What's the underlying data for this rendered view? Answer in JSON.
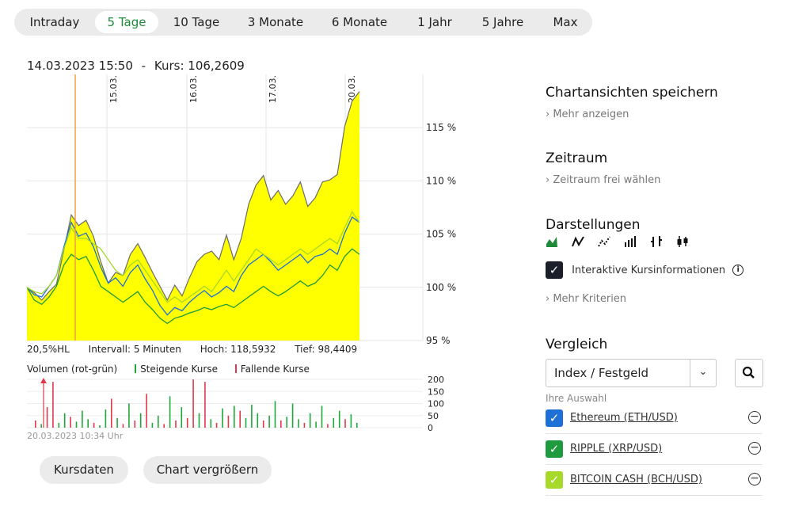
{
  "tabs": [
    {
      "label": "Intraday",
      "active": false
    },
    {
      "label": "5 Tage",
      "active": true
    },
    {
      "label": "10 Tage",
      "active": false
    },
    {
      "label": "3 Monate",
      "active": false
    },
    {
      "label": "6 Monate",
      "active": false
    },
    {
      "label": "1 Jahr",
      "active": false
    },
    {
      "label": "5 Jahre",
      "active": false
    },
    {
      "label": "Max",
      "active": false
    }
  ],
  "header": {
    "datetime": "14.03.2023 15:50",
    "separator": "-",
    "kurs": "Kurs: 106,2609"
  },
  "stats": {
    "hl": "20,5%HL",
    "intervall": "Intervall: 5 Minuten",
    "hoch": "Hoch: 118,5932",
    "tief": "Tief: 98,4409"
  },
  "volume_legend": {
    "title": "Volumen (rot-grün)",
    "rising": "Steigende Kurse",
    "falling": "Fallende Kurse"
  },
  "timestamp": "20.03.2023 10:34 Uhr",
  "buttons": {
    "kursdaten": "Kursdaten",
    "vergroessern": "Chart vergrößern"
  },
  "sidebar": {
    "save_title": "Chartansichten speichern",
    "save_link": "Mehr anzeigen",
    "zeitraum_title": "Zeitraum",
    "zeitraum_link": "Zeitraum frei wählen",
    "darstellungen_title": "Darstellungen",
    "darstellungen_icons": [
      "area-chart-icon",
      "line-chart-icon",
      "dotted-line-icon",
      "ohlc-bars-icon",
      "hlc-bars-icon",
      "candlestick-icon"
    ],
    "interactive_label": "Interaktive Kursinformationen",
    "mehr_kriterien": "Mehr Kriterien",
    "vergleich_title": "Vergleich",
    "select_value": "Index / Festgeld",
    "ihre_auswahl": "Ihre Auswahl",
    "comparisons": [
      {
        "name": "Ethereum (ETH/USD)",
        "color": "#1e6fd6"
      },
      {
        "name": "RIPPLE (XRP/USD)",
        "color": "#1f9a3e"
      },
      {
        "name": "BITCOIN CASH (BCH/USD)",
        "color": "#a6d92a"
      }
    ]
  },
  "chart_data": [
    {
      "type": "area",
      "date_labels": [
        "15.03.",
        "16.03.",
        "17.03.",
        "20.03."
      ],
      "y_ticks": [
        "115 %",
        "110 %",
        "105 %",
        "100 %",
        "95 %"
      ],
      "y_tick_values": [
        115,
        110,
        105,
        100,
        95
      ],
      "ylim": [
        95,
        120
      ],
      "marker_time": "14.03.2023 15:50",
      "series": [
        {
          "name": "",
          "type": "area",
          "color": "#ffff00",
          "values": [
            100,
            99.5,
            98.8,
            99.6,
            100.3,
            103.5,
            106.8,
            105.8,
            106.3,
            104.8,
            102.4,
            100.4,
            101.4,
            101.1,
            103.1,
            104.1,
            102.8,
            101.4,
            100.1,
            98.8,
            100.2,
            99.2,
            100.9,
            102.4,
            103.1,
            103.4,
            102.6,
            104.9,
            102.6,
            104.6,
            107.8,
            109.6,
            110.5,
            108.2,
            109.1,
            107.8,
            108.6,
            109.9,
            107.6,
            108.4,
            109.9,
            110.1,
            110.6,
            115.1,
            117.5,
            118.4
          ]
        },
        {
          "name": "Ethereum (ETH/USD)",
          "type": "line",
          "color": "#1e6fd6",
          "values": [
            100,
            99.3,
            99.1,
            100.1,
            101.1,
            103.8,
            106.1,
            104.8,
            105.1,
            103.8,
            101.9,
            100.4,
            100.9,
            100.1,
            101.4,
            102.1,
            100.8,
            99.7,
            98.3,
            97.4,
            98.1,
            97.8,
            98.6,
            99.2,
            99.7,
            99.1,
            99.5,
            100.1,
            99.6,
            101.1,
            102.1,
            102.6,
            103.1,
            102.4,
            101.6,
            102.1,
            102.6,
            103.1,
            102.3,
            102.9,
            103.1,
            103.6,
            103.1,
            105.1,
            106.6,
            106.1
          ]
        },
        {
          "name": "RIPPLE (XRP/USD)",
          "type": "line",
          "color": "#1f9a3e",
          "values": [
            100,
            98.8,
            98.4,
            99.1,
            100.1,
            102.1,
            103.1,
            102.6,
            102.9,
            101.6,
            100.1,
            99.6,
            99.1,
            98.6,
            99.1,
            99.6,
            98.6,
            97.9,
            97.1,
            96.6,
            97.1,
            97.3,
            97.6,
            97.8,
            98.1,
            97.9,
            98.2,
            98.4,
            98.1,
            98.6,
            99.1,
            99.6,
            100.1,
            99.6,
            99.2,
            99.6,
            100.1,
            100.6,
            100.1,
            100.4,
            101.1,
            102.1,
            101.6,
            102.9,
            103.6,
            103.1
          ]
        },
        {
          "name": "BITCOIN CASH (BCH/USD)",
          "type": "line",
          "color": "#a6d92a",
          "values": [
            100,
            99.6,
            99.4,
            100.1,
            101.1,
            103.6,
            105.6,
            104.6,
            104.6,
            104.1,
            103.6,
            102.6,
            101.6,
            101.1,
            102.1,
            102.6,
            101.6,
            100.6,
            99.6,
            98.6,
            99.1,
            98.6,
            99.1,
            99.6,
            100.1,
            99.6,
            100.6,
            101.6,
            100.6,
            101.6,
            102.6,
            103.6,
            103.1,
            102.6,
            102.1,
            102.6,
            103.1,
            103.6,
            103.1,
            103.6,
            104.1,
            104.6,
            104.1,
            105.6,
            107.1,
            106.1
          ]
        }
      ]
    },
    {
      "type": "bar",
      "title": "Volumen (rot-grün)",
      "y_ticks": [
        "200",
        "150",
        "100",
        "50",
        "0"
      ],
      "y_tick_values": [
        200,
        150,
        100,
        50,
        0
      ],
      "ylim": [
        0,
        200
      ],
      "bars": [
        {
          "value": 30,
          "dir": "down"
        },
        {
          "value": 15,
          "dir": "up"
        },
        {
          "value": 85,
          "dir": "down"
        },
        {
          "value": 190,
          "dir": "down"
        },
        {
          "value": 20,
          "dir": "up"
        },
        {
          "value": 60,
          "dir": "up"
        },
        {
          "value": 45,
          "dir": "down"
        },
        {
          "value": 25,
          "dir": "up"
        },
        {
          "value": 70,
          "dir": "up"
        },
        {
          "value": 35,
          "dir": "up"
        },
        {
          "value": 20,
          "dir": "down"
        },
        {
          "value": 10,
          "dir": "up"
        },
        {
          "value": 75,
          "dir": "up"
        },
        {
          "value": 120,
          "dir": "down"
        },
        {
          "value": 40,
          "dir": "up"
        },
        {
          "value": 15,
          "dir": "down"
        },
        {
          "value": 100,
          "dir": "up"
        },
        {
          "value": 30,
          "dir": "down"
        },
        {
          "value": 60,
          "dir": "up"
        },
        {
          "value": 140,
          "dir": "down"
        },
        {
          "value": 20,
          "dir": "up"
        },
        {
          "value": 50,
          "dir": "up"
        },
        {
          "value": 15,
          "dir": "down"
        },
        {
          "value": 130,
          "dir": "up"
        },
        {
          "value": 30,
          "dir": "down"
        },
        {
          "value": 85,
          "dir": "up"
        },
        {
          "value": 40,
          "dir": "down"
        },
        {
          "value": 200,
          "dir": "down"
        },
        {
          "value": 60,
          "dir": "up"
        },
        {
          "value": 190,
          "dir": "down"
        },
        {
          "value": 35,
          "dir": "up"
        },
        {
          "value": 20,
          "dir": "down"
        },
        {
          "value": 80,
          "dir": "up"
        },
        {
          "value": 50,
          "dir": "down"
        },
        {
          "value": 90,
          "dir": "up"
        },
        {
          "value": 70,
          "dir": "down"
        },
        {
          "value": 40,
          "dir": "up"
        },
        {
          "value": 95,
          "dir": "up"
        },
        {
          "value": 60,
          "dir": "up"
        },
        {
          "value": 30,
          "dir": "down"
        },
        {
          "value": 50,
          "dir": "up"
        },
        {
          "value": 110,
          "dir": "up"
        },
        {
          "value": 30,
          "dir": "down"
        },
        {
          "value": 45,
          "dir": "up"
        },
        {
          "value": 100,
          "dir": "up"
        },
        {
          "value": 35,
          "dir": "up"
        },
        {
          "value": 20,
          "dir": "down"
        },
        {
          "value": 60,
          "dir": "up"
        },
        {
          "value": 25,
          "dir": "up"
        },
        {
          "value": 90,
          "dir": "up"
        },
        {
          "value": 15,
          "dir": "down"
        },
        {
          "value": 40,
          "dir": "up"
        },
        {
          "value": 70,
          "dir": "up"
        },
        {
          "value": 35,
          "dir": "down"
        },
        {
          "value": 55,
          "dir": "up"
        },
        {
          "value": 20,
          "dir": "up"
        }
      ]
    }
  ]
}
